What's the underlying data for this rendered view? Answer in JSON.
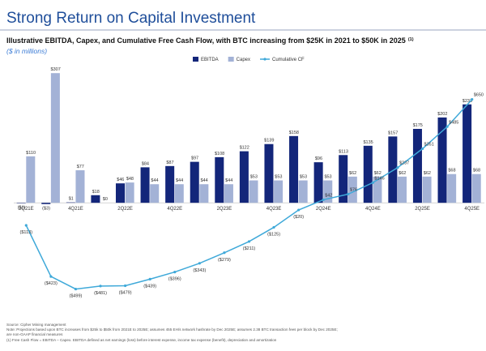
{
  "title": "Strong Return on Capital Investment",
  "chart_data": {
    "type": "bar",
    "title": "Illustrative EBITDA, Capex, and Cumulative Free Cash Flow, with BTC increasing from $25K in 2021 to $50K in 2025",
    "title_note": "(1)",
    "subtitle": "($ in millions)",
    "categories": [
      "2Q21E",
      null,
      "4Q21E",
      null,
      "2Q22E",
      null,
      "4Q22E",
      null,
      "2Q23E",
      null,
      "4Q23E",
      null,
      "2Q24E",
      null,
      "4Q24E",
      null,
      "2Q25E",
      null,
      "4Q25E"
    ],
    "series": [
      {
        "name": "EBITDA",
        "type": "bar",
        "color": "#13267a",
        "values": [
          -1,
          -3,
          1,
          18,
          46,
          84,
          87,
          97,
          108,
          122,
          139,
          158,
          96,
          113,
          135,
          157,
          175,
          202,
          233
        ],
        "value_labels": [
          "($1)",
          "($3)",
          "$1",
          "$18",
          "$46",
          "$84",
          "$87",
          "$97",
          "$108",
          "$122",
          "$139",
          "$158",
          "$96",
          "$113",
          "$135",
          "$157",
          "$175",
          "$202",
          "$233"
        ]
      },
      {
        "name": "Capex",
        "type": "bar",
        "color": "#a3b2d6",
        "values": [
          110,
          307,
          77,
          0,
          48,
          44,
          44,
          44,
          44,
          53,
          53,
          53,
          53,
          62,
          62,
          62,
          62,
          68,
          68
        ],
        "value_labels": [
          "$110",
          "$307",
          "$77",
          "$0",
          "$48",
          "$44",
          "$44",
          "$44",
          "$44",
          "$53",
          "$53",
          "$53",
          "$53",
          "$62",
          "$62",
          "$62",
          "$62",
          "$68",
          "$68"
        ]
      },
      {
        "name": "Cumulative CF",
        "type": "line",
        "axis": "y2",
        "color": "#3fa9d9",
        "values": [
          -113,
          -423,
          -499,
          -481,
          -479,
          -439,
          -396,
          -343,
          -279,
          -211,
          -125,
          -20,
          42,
          76,
          146,
          237,
          351,
          485,
          650
        ],
        "value_labels": [
          "($113)",
          "($423)",
          "($499)",
          "($481)",
          "($479)",
          "($439)",
          "($396)",
          "($343)",
          "($279)",
          "($211)",
          "($125)",
          "($20)",
          "$42",
          "$76",
          "$146",
          "$237",
          "$351",
          "$485",
          "$650"
        ]
      }
    ],
    "ylim": [
      -230,
      317
    ],
    "y2lim": [
      -565,
      835
    ],
    "legend_position": "top-right"
  },
  "footnotes": [
    "Source: Cipher Mining management",
    "Note: Projections based upon BTC increases from $25k to $50k from 2021E to 2025E; assumes 455 EH/s network hashrate by Dec 2025E; assumes 2.38 BTC transaction fees per block by Dec 2025E;",
    "are non-GAAP financial measures",
    "(1) Free Cash Flow = EBITDA – Capex. EBITDA defined as net earnings (loss) before interest expense, income tax expense (benefit), depreciation and amortization"
  ]
}
